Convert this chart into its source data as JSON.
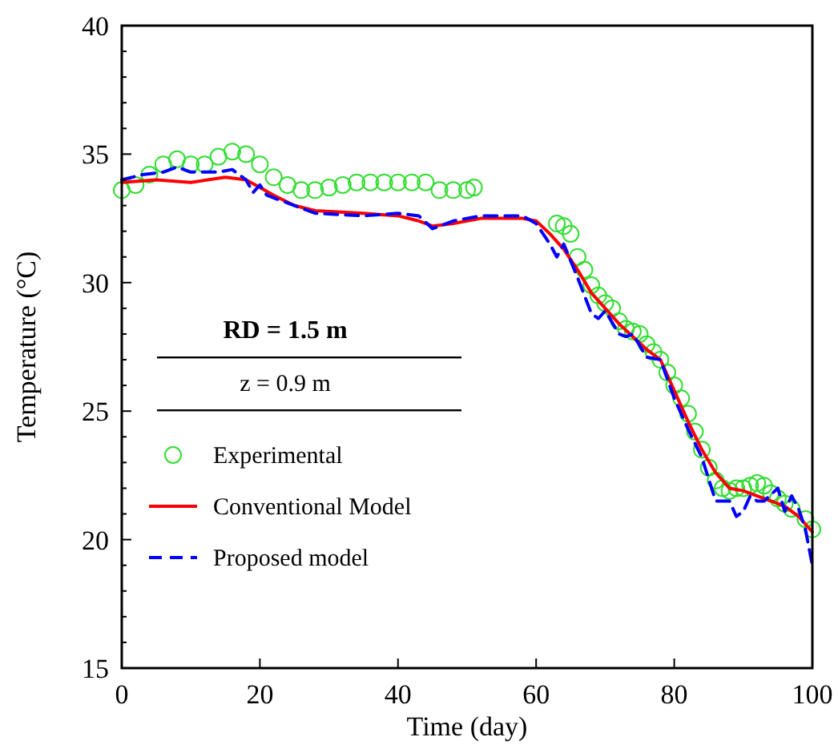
{
  "chart_data": {
    "type": "line",
    "xlabel": "Time (day)",
    "ylabel": "Temperature (°C)",
    "legend_title": "RD = 1.5 m",
    "annotations": [
      "z = 0.9 m"
    ],
    "xlim": [
      0,
      100
    ],
    "xticks": [
      0,
      20,
      40,
      60,
      80,
      100
    ],
    "ylim": [
      15,
      40
    ],
    "yticks": [
      15,
      {
        "value": 16,
        "label": null
      },
      {
        "value": 17,
        "label": null
      },
      {
        "value": 18,
        "label": null
      },
      {
        "value": 19,
        "label": null
      },
      20,
      {
        "value": 21,
        "label": null
      },
      {
        "value": 22,
        "label": null
      },
      {
        "value": 23,
        "label": null
      },
      {
        "value": 24,
        "label": null
      },
      25,
      {
        "value": 26,
        "label": null
      },
      {
        "value": 27,
        "label": null
      },
      {
        "value": 28,
        "label": null
      },
      {
        "value": 29,
        "label": null
      },
      30,
      {
        "value": 31,
        "label": null
      },
      {
        "value": 32,
        "label": null
      },
      {
        "value": 33,
        "label": null
      },
      {
        "value": 34,
        "label": null
      },
      35,
      {
        "value": 36,
        "label": null
      },
      {
        "value": 37,
        "label": null
      },
      {
        "value": 38,
        "label": null
      },
      {
        "value": 39,
        "label": null
      },
      40
    ],
    "grid": false,
    "legend": "bottom left",
    "series": [
      {
        "name": "Experimental",
        "type": "scatter",
        "marker": "circle",
        "color": "#33dd33",
        "x": [
          0,
          2,
          4,
          6,
          8,
          10,
          12,
          14,
          16,
          18,
          20,
          22,
          24,
          26,
          28,
          30,
          32,
          34,
          36,
          38,
          40,
          42,
          44,
          46,
          48,
          50,
          51,
          63,
          64,
          65,
          66,
          67,
          68,
          69,
          70,
          71,
          72,
          73,
          74,
          75,
          76,
          77,
          78,
          79,
          80,
          81,
          82,
          83,
          84,
          85,
          86,
          87,
          88,
          89,
          90,
          91,
          92,
          93,
          94,
          95,
          96,
          97,
          99,
          100
        ],
        "values": [
          33.6,
          33.8,
          34.2,
          34.6,
          34.8,
          34.6,
          34.6,
          34.9,
          35.1,
          35.0,
          34.6,
          34.1,
          33.8,
          33.6,
          33.6,
          33.7,
          33.8,
          33.9,
          33.9,
          33.9,
          33.9,
          33.9,
          33.9,
          33.6,
          33.6,
          33.6,
          33.7,
          32.3,
          32.2,
          31.9,
          31.0,
          30.5,
          29.9,
          29.5,
          29.2,
          29.0,
          28.5,
          28.2,
          28.1,
          28.0,
          27.6,
          27.3,
          27.0,
          26.5,
          26.0,
          25.5,
          24.9,
          24.2,
          23.5,
          22.8,
          22.3,
          22.0,
          21.9,
          22.0,
          22.0,
          22.1,
          22.2,
          22.1,
          21.8,
          21.6,
          21.4,
          21.2,
          20.8,
          20.4
        ]
      },
      {
        "name": "Conventional Model",
        "line_style": "solid",
        "color": "#ff0000",
        "x": [
          0,
          5,
          10,
          15,
          18,
          20,
          22,
          25,
          28,
          35,
          40,
          43,
          45,
          48,
          52,
          58,
          60,
          62,
          64,
          66,
          68,
          70,
          72,
          74,
          76,
          78,
          80,
          82,
          84,
          86,
          88,
          90,
          92,
          94,
          96,
          98,
          100
        ],
        "values": [
          33.9,
          34.0,
          33.9,
          34.1,
          34.0,
          33.7,
          33.4,
          33.0,
          32.8,
          32.7,
          32.6,
          32.4,
          32.2,
          32.3,
          32.5,
          32.5,
          32.4,
          31.9,
          31.3,
          30.5,
          29.6,
          29.0,
          28.4,
          27.9,
          27.4,
          27.0,
          25.8,
          24.6,
          23.5,
          22.6,
          22.0,
          21.9,
          21.7,
          21.5,
          21.3,
          20.9,
          20.3
        ]
      },
      {
        "name": "Proposed model",
        "line_style": "dashed",
        "color": "#0000ff",
        "x": [
          0,
          3,
          6,
          8,
          10,
          14,
          16,
          18,
          19,
          20,
          21,
          24,
          28,
          35,
          40,
          43,
          45,
          48,
          52,
          58,
          60,
          62,
          63,
          64,
          66,
          68,
          69,
          70,
          72,
          73,
          74,
          76,
          78,
          80,
          82,
          84,
          86,
          88,
          89,
          90,
          91,
          92,
          93,
          95,
          96,
          97,
          98,
          99,
          100
        ],
        "values": [
          34.0,
          34.2,
          34.3,
          34.5,
          34.3,
          34.3,
          34.4,
          34.0,
          33.5,
          33.8,
          33.4,
          33.1,
          32.7,
          32.6,
          32.7,
          32.6,
          32.1,
          32.4,
          32.6,
          32.6,
          32.3,
          31.5,
          31.0,
          31.5,
          30.2,
          28.8,
          28.6,
          28.9,
          28.0,
          27.9,
          28.0,
          27.1,
          27.0,
          25.5,
          24.3,
          23.2,
          21.5,
          21.5,
          20.9,
          21.1,
          21.7,
          21.5,
          21.5,
          22.0,
          21.1,
          21.7,
          21.2,
          20.4,
          19.0
        ]
      }
    ]
  }
}
